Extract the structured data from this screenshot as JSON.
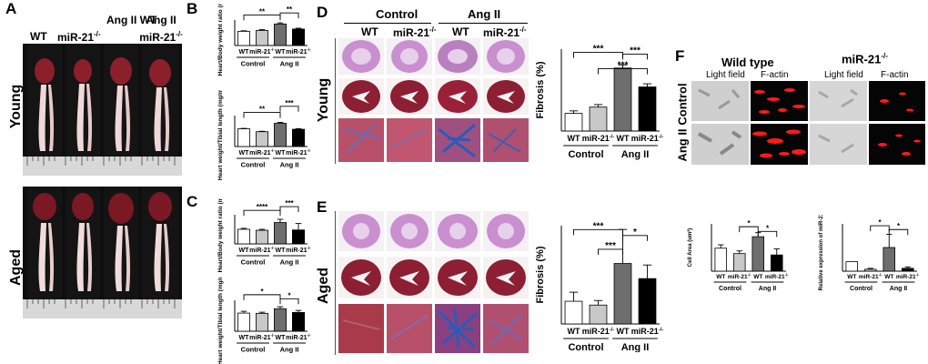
{
  "panels": {
    "A": {
      "label": "A",
      "col_headers": [
        "WT",
        "miR-21",
        "Ang II WT",
        "Ang II miR-21"
      ],
      "row_labels": [
        "Young",
        "Aged"
      ],
      "sup": "-/-"
    },
    "B": {
      "label": "B",
      "top": {
        "ylabel": "Heart/Body weight ratio (mg/g)",
        "sig": [
          "**",
          "**"
        ],
        "x_labels": [
          "WT",
          "miR-21",
          "WT",
          "miR-21"
        ],
        "groups": [
          "Control",
          "Ang II"
        ]
      },
      "bottom": {
        "ylabel": "Heart weight/Tibial length (mg/mm)",
        "sig": [
          "**",
          "***"
        ],
        "x_labels": [
          "WT",
          "miR-21",
          "WT",
          "miR-21"
        ],
        "groups": [
          "Control",
          "Ang II"
        ]
      }
    },
    "C": {
      "label": "C",
      "top": {
        "ylabel": "Heart/Body weight ratio (mg/g)",
        "sig": [
          "****",
          "***"
        ],
        "x_labels": [
          "WT",
          "miR-21",
          "WT",
          "miR-21"
        ],
        "groups": [
          "Control",
          "Ang II"
        ]
      },
      "bottom": {
        "ylabel": "Heart weight/Tibial length (mg/mm)",
        "sig": [
          "*",
          "*"
        ],
        "x_labels": [
          "WT",
          "miR-21",
          "WT",
          "miR-21"
        ],
        "groups": [
          "Control",
          "Ang II"
        ]
      }
    },
    "D": {
      "label": "D",
      "headers": [
        "Control",
        "Ang II"
      ],
      "subheaders": [
        "WT",
        "miR-21",
        "WT",
        "miR-21"
      ],
      "row_label": "Young",
      "chart_ylabel": "Fibrosis (%)",
      "sig": [
        "***",
        "***",
        "***"
      ],
      "x_labels": [
        "WT",
        "miR-21",
        "WT",
        "miR-21"
      ],
      "groups": [
        "Control",
        "Ang II"
      ]
    },
    "E": {
      "label": "E",
      "row_label": "Aged",
      "chart_ylabel": "Fibrosis (%)",
      "sig": [
        "***",
        "*",
        "***"
      ],
      "x_labels": [
        "WT",
        "miR-21",
        "WT",
        "miR-21"
      ],
      "groups": [
        "Control",
        "Ang II"
      ]
    },
    "F": {
      "label": "F",
      "headers": [
        "Wild type",
        "miR-21"
      ],
      "subheaders": [
        "Light field",
        "F-actin",
        "Light field",
        "F-actin"
      ],
      "row_labels": [
        "Control",
        "Ang II"
      ],
      "left_chart": {
        "ylabel": "Cell Area (um²)",
        "sig": [
          "*",
          "*"
        ],
        "x_labels": [
          "WT",
          "miR-21",
          "WT",
          "miR-21"
        ],
        "groups": [
          "Control",
          "Ang II"
        ]
      },
      "right_chart": {
        "ylabel": "Relative expression of miR-21/U6",
        "sig": [
          "*",
          "*"
        ],
        "x_labels": [
          "WT",
          "miR-21",
          "WT",
          "miR-21"
        ],
        "groups": [
          "Control",
          "Ang II"
        ]
      }
    }
  },
  "chart_data": [
    {
      "id": "B-top",
      "type": "bar",
      "categories": [
        "WT",
        "miR-21-/-",
        "WT",
        "miR-21-/-"
      ],
      "values": [
        5.0,
        5.3,
        7.6,
        5.8
      ],
      "errors": [
        0.2,
        0.3,
        0.4,
        0.3
      ],
      "ylim": [
        0,
        9
      ],
      "ylabel": "Heart/Body weight ratio (mg/g)"
    },
    {
      "id": "B-bottom",
      "type": "bar",
      "categories": [
        "WT",
        "miR-21-/-",
        "WT",
        "miR-21-/-"
      ],
      "values": [
        8.0,
        6.7,
        10.5,
        7.8
      ],
      "errors": [
        0.2,
        0.2,
        0.4,
        0.3
      ],
      "ylim": [
        0,
        14
      ],
      "ylabel": "Heart weight/Tibial length (mg/mm)"
    },
    {
      "id": "C-top",
      "type": "bar",
      "categories": [
        "WT",
        "miR-21-/-",
        "WT",
        "miR-21-/-"
      ],
      "values": [
        4.5,
        4.2,
        6.6,
        4.3
      ],
      "errors": [
        0.3,
        0.3,
        1.0,
        2.0
      ],
      "ylim": [
        0,
        9
      ],
      "ylabel": "Heart/Body weight ratio (mg/g)"
    },
    {
      "id": "C-bottom",
      "type": "bar",
      "categories": [
        "WT",
        "miR-21-/-",
        "WT",
        "miR-21-/-"
      ],
      "values": [
        8.2,
        8.1,
        10.2,
        8.5
      ],
      "errors": [
        0.8,
        0.5,
        0.9,
        0.9
      ],
      "ylim": [
        0,
        14
      ],
      "ylabel": "Heart weight/Tibial length (mg/mm)"
    },
    {
      "id": "D",
      "type": "bar",
      "categories": [
        "WT",
        "miR-21-/-",
        "WT",
        "miR-21-/-"
      ],
      "values": [
        2.8,
        3.8,
        10.0,
        7.0
      ],
      "errors": [
        0.4,
        0.4,
        0.5,
        0.5
      ],
      "ylim": [
        0,
        13
      ],
      "ylabel": "Fibrosis (%)"
    },
    {
      "id": "E",
      "type": "bar",
      "categories": [
        "WT",
        "miR-21-/-",
        "WT",
        "miR-21-/-"
      ],
      "values": [
        3.0,
        2.5,
        8.0,
        6.0
      ],
      "errors": [
        1.2,
        0.6,
        4.5,
        1.8
      ],
      "ylim": [
        0,
        13
      ],
      "ylabel": "Fibrosis (%)"
    },
    {
      "id": "F-left",
      "type": "bar",
      "categories": [
        "WT",
        "miR-21-/-",
        "WT",
        "miR-21-/-"
      ],
      "values": [
        170,
        130,
        255,
        120
      ],
      "errors": [
        25,
        20,
        30,
        45
      ],
      "ylim": [
        0,
        350
      ],
      "ylabel": "Cell Area (um²)"
    },
    {
      "id": "F-right",
      "type": "bar",
      "categories": [
        "WT",
        "miR-21-/-",
        "WT",
        "miR-21-/-"
      ],
      "values": [
        2.0,
        0.4,
        5.0,
        0.6
      ],
      "errors": [
        0,
        0.2,
        2.8,
        0.3
      ],
      "ylim": [
        0,
        10
      ],
      "ylabel": "Relative expression of miR-21/U6"
    }
  ],
  "colors": {
    "bar_fills": [
      "#ffffff",
      "#c8c8c8",
      "#6e6e6e",
      "#000000"
    ],
    "heart_red": "#8b1f2a",
    "he_purple": "#c98fcf",
    "masson_red": "#b03050",
    "masson_blue": "#2a5bb8",
    "factin_red": "#ff1a1a"
  },
  "icons": [
    "ruler-icon"
  ]
}
